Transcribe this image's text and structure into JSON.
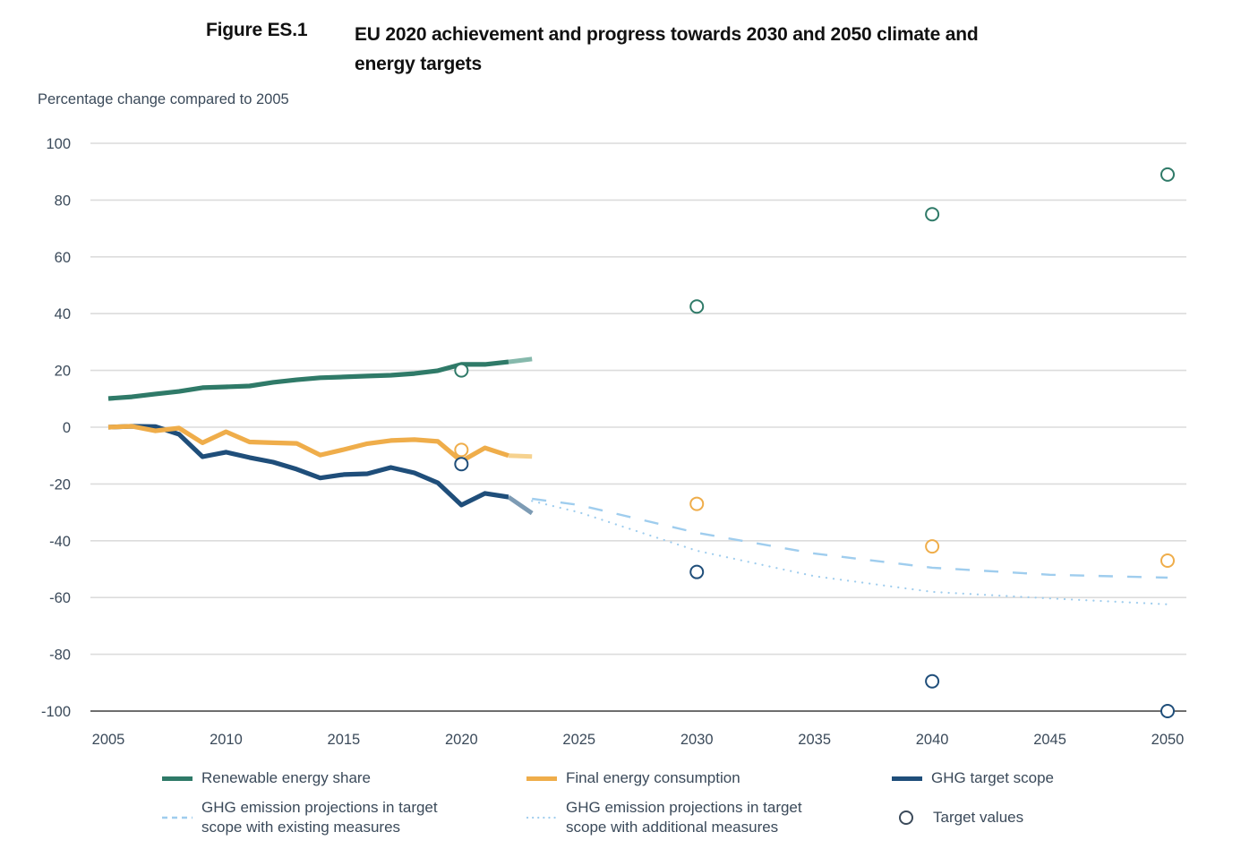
{
  "figure": {
    "label": "Figure ES.1",
    "title": "EU 2020 achievement and progress towards 2030 and 2050 climate and energy targets"
  },
  "colors": {
    "renewable": "#2f7a68",
    "renewable_proxy": "#86b9ac",
    "final_energy": "#efad4a",
    "final_energy_proxy": "#f6d28f",
    "ghg": "#1f4e7a",
    "ghg_proxy": "#7d9bb4",
    "projection": "#9fcdee",
    "grid": "#dcdcdc",
    "axis": "#6e6e6e"
  },
  "chart_data": {
    "type": "line",
    "title": "EU 2020 achievement and progress towards 2030 and 2050 climate and energy targets",
    "ylabel": "Percentage change compared to 2005",
    "xlabel": "",
    "xlim": [
      2005,
      2050
    ],
    "ylim": [
      -100,
      100
    ],
    "x_ticks": [
      2005,
      2010,
      2015,
      2020,
      2025,
      2030,
      2035,
      2040,
      2045,
      2050
    ],
    "y_ticks": [
      100,
      80,
      60,
      40,
      20,
      0,
      -20,
      -40,
      -60,
      -80,
      -100
    ],
    "grid": true,
    "legend_position": "bottom",
    "series": [
      {
        "name": "Renewable energy share",
        "key": "renewable",
        "style": "solid",
        "x": [
          2005,
          2006,
          2007,
          2008,
          2009,
          2010,
          2011,
          2012,
          2013,
          2014,
          2015,
          2016,
          2017,
          2018,
          2019,
          2020,
          2021,
          2022
        ],
        "values": [
          10.1,
          10.7,
          11.7,
          12.6,
          13.9,
          14.2,
          14.5,
          15.8,
          16.7,
          17.4,
          17.7,
          18.0,
          18.3,
          18.9,
          19.9,
          22.1,
          22.1,
          23.0
        ],
        "proxy": {
          "x": [
            2022,
            2023
          ],
          "values": [
            23.0,
            24.0
          ]
        }
      },
      {
        "name": "Final energy consumption",
        "key": "final_energy",
        "style": "solid",
        "x": [
          2005,
          2006,
          2007,
          2008,
          2009,
          2010,
          2011,
          2012,
          2013,
          2014,
          2015,
          2016,
          2017,
          2018,
          2019,
          2020,
          2021,
          2022
        ],
        "values": [
          0,
          0.3,
          -1.3,
          -0.3,
          -5.5,
          -1.6,
          -5.2,
          -5.5,
          -5.7,
          -9.8,
          -7.9,
          -5.8,
          -4.7,
          -4.4,
          -5.0,
          -12.0,
          -7.3,
          -10.0
        ],
        "proxy": {
          "x": [
            2022,
            2023
          ],
          "values": [
            -10.0,
            -10.3
          ]
        }
      },
      {
        "name": "GHG target scope",
        "key": "ghg",
        "style": "solid",
        "x": [
          2005,
          2006,
          2007,
          2008,
          2009,
          2010,
          2011,
          2012,
          2013,
          2014,
          2015,
          2016,
          2017,
          2018,
          2019,
          2020,
          2021,
          2022
        ],
        "values": [
          0,
          0.3,
          0.2,
          -2.5,
          -10.4,
          -8.8,
          -10.7,
          -12.3,
          -14.8,
          -17.9,
          -16.7,
          -16.4,
          -14.2,
          -16.1,
          -19.6,
          -27.4,
          -23.3,
          -24.6
        ],
        "proxy": {
          "x": [
            2022,
            2023
          ],
          "values": [
            -24.6,
            -30.3
          ]
        }
      },
      {
        "name": "GHG emission projections in target scope with existing measures",
        "key": "projection",
        "style": "dashed",
        "x": [
          2023,
          2025,
          2030,
          2035,
          2040,
          2045,
          2050
        ],
        "values": [
          -25.2,
          -27.4,
          -37.2,
          -44.5,
          -49.5,
          -52.0,
          -53.0
        ]
      },
      {
        "name": "GHG emission projections in target scope with additional measures",
        "key": "projection",
        "style": "dotted",
        "x": [
          2023,
          2025,
          2030,
          2035,
          2040,
          2045,
          2050
        ],
        "values": [
          -26.0,
          -30.0,
          -43.5,
          -52.5,
          -58.0,
          -60.3,
          -62.4
        ]
      }
    ],
    "targets": [
      {
        "series": "Renewable energy share",
        "key": "renewable",
        "x": [
          2020,
          2030,
          2040,
          2050
        ],
        "values": [
          20,
          42.5,
          75,
          89
        ]
      },
      {
        "series": "Final energy consumption",
        "key": "final_energy",
        "x": [
          2020,
          2030,
          2040,
          2050
        ],
        "values": [
          -8,
          -27,
          -42,
          -47
        ]
      },
      {
        "series": "GHG target scope",
        "key": "ghg",
        "x": [
          2020,
          2030,
          2040,
          2050
        ],
        "values": [
          -13,
          -51,
          -89.5,
          -100
        ]
      }
    ]
  },
  "legend": {
    "renewable": "Renewable energy share",
    "final_energy": "Final energy consumption",
    "ghg": "GHG target scope",
    "existing_line1": "GHG emission projections in target",
    "existing_line2": "scope with existing measures",
    "additional_line1": "GHG emission projections in target",
    "additional_line2": "scope with additional measures",
    "targets": "Target values"
  }
}
